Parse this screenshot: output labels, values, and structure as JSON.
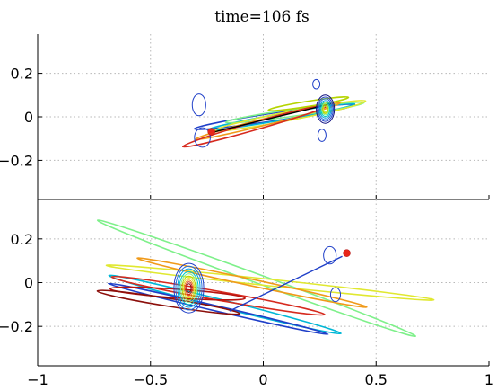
{
  "chart_data": {
    "type": "line",
    "title": "time=106 fs",
    "x_ticks": [
      -1,
      -0.5,
      0,
      0.5,
      1
    ],
    "x_tick_labels": [
      "−1",
      "−0.5",
      "0",
      "0.5",
      "1"
    ],
    "xlim": [
      -1,
      1
    ],
    "grid": true,
    "panels": [
      {
        "ylim": [
          -0.38,
          0.38
        ],
        "y_ticks": [
          -0.2,
          0,
          0.2
        ],
        "y_tick_labels": [
          "−0.2",
          "0",
          "0.2"
        ],
        "trajectories": [
          {
            "color": "#1f3fc8",
            "cx": 0.05,
            "cy": 0.0,
            "a": 0.36,
            "b": 0.018,
            "angle": 8.5
          },
          {
            "color": "#00b7d6",
            "cx": 0.08,
            "cy": 0.0,
            "a": 0.33,
            "b": 0.015,
            "angle": 10
          },
          {
            "color": "#7ef08a",
            "cx": 0.14,
            "cy": 0.02,
            "a": 0.31,
            "b": 0.016,
            "angle": 8
          },
          {
            "color": "#e0e830",
            "cx": 0.12,
            "cy": 0.005,
            "a": 0.34,
            "b": 0.02,
            "angle": 11
          },
          {
            "color": "#f09a1a",
            "cx": 0.02,
            "cy": -0.02,
            "a": 0.33,
            "b": 0.015,
            "angle": 14
          },
          {
            "color": "#d62a1e",
            "cx": -0.03,
            "cy": -0.04,
            "a": 0.34,
            "b": 0.018,
            "angle": 16
          },
          {
            "color": "#b5d400",
            "cx": 0.2,
            "cy": 0.06,
            "a": 0.18,
            "b": 0.012,
            "angle": 9
          }
        ],
        "segments": [
          {
            "color": "#000000",
            "x1": -0.22,
            "y1": -0.07,
            "x2": 0.3,
            "y2": 0.06
          }
        ],
        "markers": [
          {
            "color": "#e8261a",
            "x": -0.23,
            "y": -0.068
          }
        ],
        "contours": [
          {
            "cx": 0.275,
            "cy": 0.035,
            "rx": [
              0.008,
              0.012,
              0.016,
              0.02,
              0.025,
              0.03,
              0.035,
              0.04
            ],
            "ry": [
              0.015,
              0.02,
              0.026,
              0.033,
              0.04,
              0.048,
              0.056,
              0.065
            ],
            "colors": [
              "#e0e830",
              "#b5d400",
              "#7ef08a",
              "#00c9c9",
              "#00a0e0",
              "#1f6fe0",
              "#1f3fc8",
              "#101080"
            ]
          },
          {
            "cx": -0.285,
            "cy": 0.055,
            "rx": [
              0.03
            ],
            "ry": [
              0.05
            ],
            "colors": [
              "#1f3fc8"
            ]
          },
          {
            "cx": -0.27,
            "cy": -0.095,
            "rx": [
              0.035
            ],
            "ry": [
              0.045
            ],
            "colors": [
              "#1f3fc8"
            ]
          },
          {
            "cx": 0.26,
            "cy": -0.085,
            "rx": [
              0.018
            ],
            "ry": [
              0.028
            ],
            "colors": [
              "#1f3fc8"
            ]
          },
          {
            "cx": 0.235,
            "cy": 0.15,
            "rx": [
              0.016
            ],
            "ry": [
              0.022
            ],
            "colors": [
              "#1f3fc8"
            ]
          }
        ]
      },
      {
        "ylim": [
          -0.38,
          0.38
        ],
        "y_ticks": [
          -0.2,
          0,
          0.2
        ],
        "y_tick_labels": [
          "−0.2",
          "0",
          "0.2"
        ],
        "trajectories": [
          {
            "color": "#00b7d6",
            "cx": -0.17,
            "cy": -0.1,
            "a": 0.53,
            "b": 0.018,
            "angle": -14
          },
          {
            "color": "#1f3fc8",
            "cx": -0.2,
            "cy": -0.12,
            "a": 0.5,
            "b": 0.012,
            "angle": -13
          },
          {
            "color": "#7ef08a",
            "cx": -0.03,
            "cy": 0.02,
            "a": 0.75,
            "b": 0.02,
            "angle": -20
          },
          {
            "color": "#e0e830",
            "cx": 0.03,
            "cy": 0.0,
            "a": 0.73,
            "b": 0.015,
            "angle": -6
          },
          {
            "color": "#f09a1a",
            "cx": -0.05,
            "cy": 0.0,
            "a": 0.52,
            "b": 0.015,
            "angle": -12
          },
          {
            "color": "#d62a1e",
            "cx": -0.2,
            "cy": -0.06,
            "a": 0.48,
            "b": 0.02,
            "angle": -10
          },
          {
            "color": "#b8140f",
            "cx": -0.38,
            "cy": -0.05,
            "a": 0.3,
            "b": 0.02,
            "angle": -4
          },
          {
            "color": "#8b0e0a",
            "cx": -0.42,
            "cy": -0.09,
            "a": 0.32,
            "b": 0.018,
            "angle": -9
          }
        ],
        "segments": [
          {
            "color": "#1f3fc8",
            "x1": -0.15,
            "y1": -0.13,
            "x2": 0.35,
            "y2": 0.12
          }
        ],
        "markers": [
          {
            "color": "#e8261a",
            "x": 0.37,
            "y": 0.135
          }
        ],
        "contours": [
          {
            "cx": -0.33,
            "cy": -0.025,
            "rx": [
              0.01,
              0.015,
              0.02,
              0.025,
              0.03,
              0.036,
              0.042,
              0.05,
              0.058,
              0.066
            ],
            "ry": [
              0.02,
              0.028,
              0.036,
              0.045,
              0.055,
              0.065,
              0.075,
              0.088,
              0.1,
              0.113
            ],
            "colors": [
              "#8b0e0a",
              "#d62a1e",
              "#f09a1a",
              "#e0e830",
              "#b5d400",
              "#7ef08a",
              "#00c9c9",
              "#00a0e0",
              "#1f6fe0",
              "#1f3fc8"
            ]
          },
          {
            "cx": 0.295,
            "cy": 0.125,
            "rx": [
              0.028
            ],
            "ry": [
              0.04
            ],
            "colors": [
              "#1f3fc8"
            ]
          },
          {
            "cx": 0.32,
            "cy": -0.055,
            "rx": [
              0.022
            ],
            "ry": [
              0.032
            ],
            "colors": [
              "#1f3fc8"
            ]
          }
        ]
      }
    ]
  }
}
